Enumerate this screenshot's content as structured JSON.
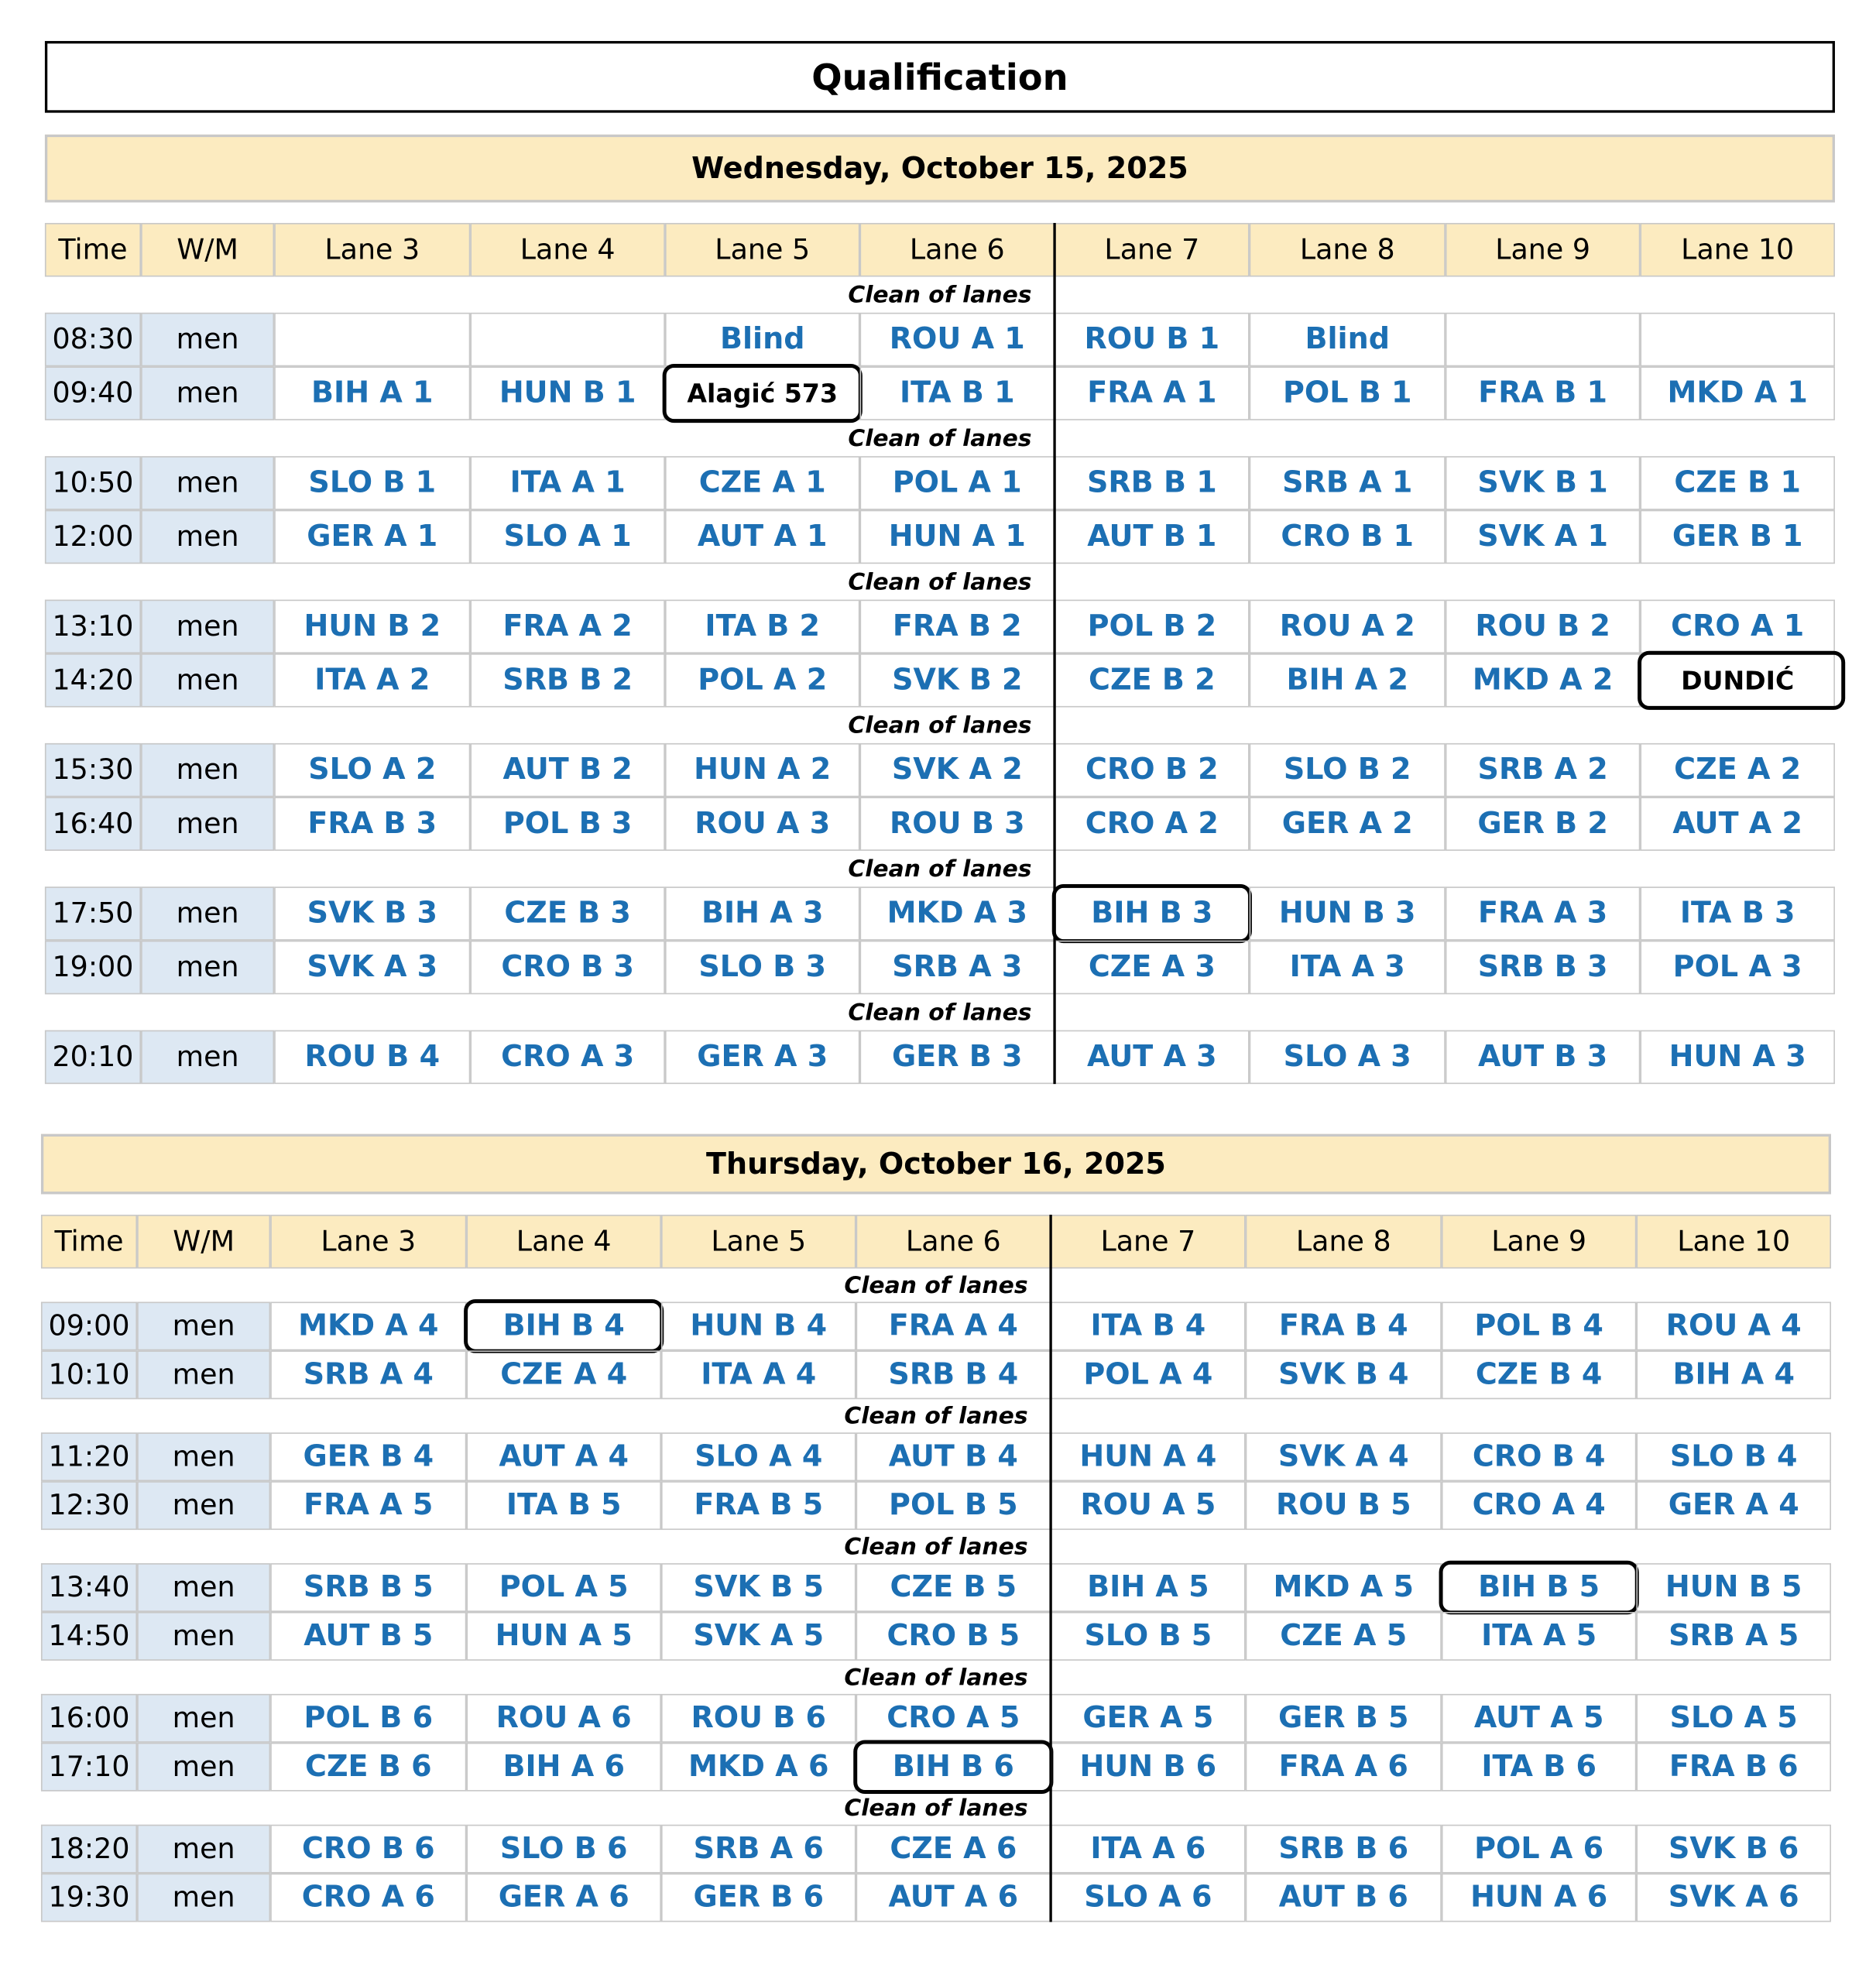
{
  "title": "Qualification",
  "days": [
    {
      "date": "Wednesday, October 15, 2025",
      "columns": [
        "Time",
        "W/M",
        "Lane 3",
        "Lane 4",
        "Lane 5",
        "Lane 6",
        "Lane 7",
        "Lane 8",
        "Lane 9",
        "Lane 10"
      ],
      "blocks": [
        {
          "note": "Clean of lanes",
          "rows": [
            {
              "time": "08:30",
              "group": "men",
              "lanes": [
                null,
                null,
                "Blind",
                "ROU A 1",
                "ROU B 1",
                "Blind",
                null,
                null
              ]
            },
            {
              "time": "09:40",
              "group": "men",
              "lanes": [
                "BIH A 1",
                "HUN B 1",
                "Alagić 573",
                "ITA B 1",
                "FRA A 1",
                "POL B 1",
                "FRA B 1",
                "MKD A 1"
              ]
            }
          ]
        },
        {
          "note": "Clean of lanes",
          "rows": [
            {
              "time": "10:50",
              "group": "men",
              "lanes": [
                "SLO B 1",
                "ITA A 1",
                "CZE A 1",
                "POL A 1",
                "SRB B 1",
                "SRB A 1",
                "SVK B 1",
                "CZE B 1"
              ]
            },
            {
              "time": "12:00",
              "group": "men",
              "lanes": [
                "GER A 1",
                "SLO A 1",
                "AUT A 1",
                "HUN A 1",
                "AUT B 1",
                "CRO B 1",
                "SVK A 1",
                "GER B 1"
              ]
            }
          ]
        },
        {
          "note": "Clean of lanes",
          "rows": [
            {
              "time": "13:10",
              "group": "men",
              "lanes": [
                "HUN B 2",
                "FRA A 2",
                "ITA B 2",
                "FRA B 2",
                "POL B 2",
                "ROU A 2",
                "ROU B 2",
                "CRO A 1"
              ]
            },
            {
              "time": "14:20",
              "group": "men",
              "lanes": [
                "ITA A 2",
                "SRB B 2",
                "POL A 2",
                "SVK B 2",
                "CZE B 2",
                "BIH A 2",
                "MKD A 2",
                "DUNDIĆ"
              ]
            }
          ]
        },
        {
          "note": "Clean of lanes",
          "rows": [
            {
              "time": "15:30",
              "group": "men",
              "lanes": [
                "SLO A 2",
                "AUT B 2",
                "HUN A 2",
                "SVK A 2",
                "CRO B 2",
                "SLO B 2",
                "SRB A 2",
                "CZE A 2"
              ]
            },
            {
              "time": "16:40",
              "group": "men",
              "lanes": [
                "FRA B 3",
                "POL B 3",
                "ROU A 3",
                "ROU B 3",
                "CRO A 2",
                "GER A 2",
                "GER B 2",
                "AUT A 2"
              ]
            }
          ]
        },
        {
          "note": "Clean of lanes",
          "rows": [
            {
              "time": "17:50",
              "group": "men",
              "lanes": [
                "SVK B 3",
                "CZE B 3",
                "BIH A 3",
                "MKD A 3",
                "BIH B 3",
                "HUN B 3",
                "FRA A 3",
                "ITA B 3"
              ]
            },
            {
              "time": "19:00",
              "group": "men",
              "lanes": [
                "SVK A 3",
                "CRO B 3",
                "SLO B 3",
                "SRB A 3",
                "CZE A 3",
                "ITA A 3",
                "SRB B 3",
                "POL A 3"
              ]
            }
          ]
        },
        {
          "note": "Clean of lanes",
          "rows": [
            {
              "time": "20:10",
              "group": "men",
              "lanes": [
                "ROU B 4",
                "CRO A 3",
                "GER A 3",
                "GER B 3",
                "AUT A 3",
                "SLO A 3",
                "AUT B 3",
                "HUN A 3"
              ]
            }
          ]
        }
      ]
    },
    {
      "date": "Thursday, October 16, 2025",
      "columns": [
        "Time",
        "W/M",
        "Lane 3",
        "Lane 4",
        "Lane 5",
        "Lane 6",
        "Lane 7",
        "Lane 8",
        "Lane 9",
        "Lane 10"
      ],
      "blocks": [
        {
          "note": "Clean of lanes",
          "rows": [
            {
              "time": "09:00",
              "group": "men",
              "lanes": [
                "MKD A 4",
                "BIH B 4",
                "HUN B 4",
                "FRA A 4",
                "ITA B 4",
                "FRA B 4",
                "POL B 4",
                "ROU A 4"
              ]
            },
            {
              "time": "10:10",
              "group": "men",
              "lanes": [
                "SRB A 4",
                "CZE A 4",
                "ITA A 4",
                "SRB B 4",
                "POL A 4",
                "SVK B 4",
                "CZE B 4",
                "BIH A 4"
              ]
            }
          ]
        },
        {
          "note": "Clean of lanes",
          "rows": [
            {
              "time": "11:20",
              "group": "men",
              "lanes": [
                "GER B 4",
                "AUT A 4",
                "SLO A 4",
                "AUT B 4",
                "HUN A 4",
                "SVK A 4",
                "CRO B 4",
                "SLO B 4"
              ]
            },
            {
              "time": "12:30",
              "group": "men",
              "lanes": [
                "FRA A 5",
                "ITA B 5",
                "FRA B 5",
                "POL B 5",
                "ROU A 5",
                "ROU B 5",
                "CRO A 4",
                "GER A 4"
              ]
            }
          ]
        },
        {
          "note": "Clean of lanes",
          "rows": [
            {
              "time": "13:40",
              "group": "men",
              "lanes": [
                "SRB B 5",
                "POL A 5",
                "SVK B 5",
                "CZE B 5",
                "BIH A 5",
                "MKD A 5",
                "BIH B 5",
                "HUN B 5"
              ]
            },
            {
              "time": "14:50",
              "group": "men",
              "lanes": [
                "AUT B 5",
                "HUN A 5",
                "SVK A 5",
                "CRO B 5",
                "SLO B 5",
                "CZE A 5",
                "ITA A 5",
                "SRB A 5"
              ]
            }
          ]
        },
        {
          "note": "Clean of lanes",
          "rows": [
            {
              "time": "16:00",
              "group": "men",
              "lanes": [
                "POL B 6",
                "ROU A 6",
                "ROU B 6",
                "CRO A 5",
                "GER A 5",
                "GER B 5",
                "AUT A 5",
                "SLO A 5"
              ]
            },
            {
              "time": "17:10",
              "group": "men",
              "lanes": [
                "CZE B 6",
                "BIH A 6",
                "MKD A 6",
                "BIH B 6",
                "HUN B 6",
                "FRA A 6",
                "ITA B 6",
                "FRA B 6"
              ]
            }
          ]
        },
        {
          "note": "Clean of lanes",
          "rows": [
            {
              "time": "18:20",
              "group": "men",
              "lanes": [
                "CRO B 6",
                "SLO B 6",
                "SRB A 6",
                "CZE A 6",
                "ITA A 6",
                "SRB B 6",
                "POL A 6",
                "SVK B 6"
              ]
            },
            {
              "time": "19:30",
              "group": "men",
              "lanes": [
                "CRO A 6",
                "GER A 6",
                "GER B 6",
                "AUT A 6",
                "SLO A 6",
                "AUT B 6",
                "HUN A 6",
                "SVK A 6"
              ]
            }
          ]
        }
      ]
    }
  ]
}
